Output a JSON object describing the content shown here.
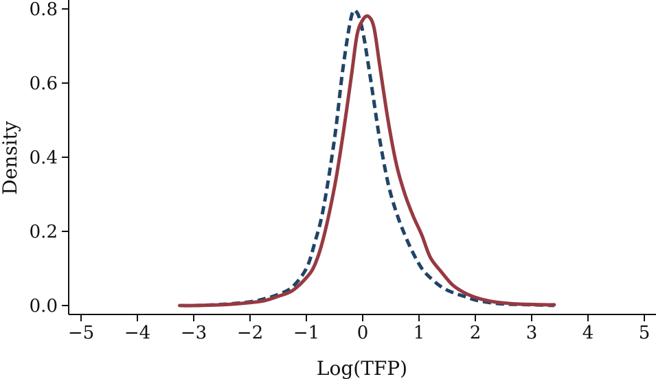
{
  "chart_data": {
    "type": "line",
    "title": "",
    "xlabel": "Log(TFP)",
    "ylabel": "Density",
    "xlim": [
      -5,
      5
    ],
    "ylim": [
      0,
      0.8
    ],
    "xticks": [
      -5,
      -4,
      -3,
      -2,
      -1,
      0,
      1,
      2,
      3,
      4,
      5
    ],
    "xtick_labels": [
      "−5",
      "−4",
      "−3",
      "−2",
      "−1",
      "0",
      "1",
      "2",
      "3",
      "4",
      "5"
    ],
    "yticks": [
      0,
      0.2,
      0.4,
      0.6,
      0.8
    ],
    "ytick_labels": [
      "0.0",
      "0.2",
      "0.4",
      "0.6",
      "0.8"
    ],
    "grid": false,
    "legend": "none",
    "series": [
      {
        "color": "#1f4466",
        "line_style": "dashed",
        "x": [
          -3.25,
          -3.0,
          -2.5,
          -2.0,
          -1.75,
          -1.5,
          -1.25,
          -1.0,
          -0.85,
          -0.7,
          -0.5,
          -0.35,
          -0.2,
          -0.1,
          0.0,
          0.1,
          0.2,
          0.3,
          0.45,
          0.6,
          0.75,
          0.9,
          1.05,
          1.2,
          1.4,
          1.6,
          1.8,
          2.0,
          2.25,
          2.5,
          2.75,
          3.0,
          3.25,
          3.4
        ],
        "y": [
          0.0,
          0.0,
          0.003,
          0.01,
          0.018,
          0.03,
          0.05,
          0.1,
          0.17,
          0.26,
          0.45,
          0.64,
          0.78,
          0.79,
          0.74,
          0.65,
          0.55,
          0.45,
          0.33,
          0.25,
          0.19,
          0.14,
          0.1,
          0.075,
          0.05,
          0.035,
          0.025,
          0.015,
          0.008,
          0.004,
          0.003,
          0.002,
          0.001,
          0.0
        ]
      },
      {
        "color": "#963a42",
        "line_style": "solid",
        "x": [
          -3.25,
          -3.0,
          -2.5,
          -2.0,
          -1.75,
          -1.5,
          -1.25,
          -1.0,
          -0.85,
          -0.7,
          -0.5,
          -0.35,
          -0.2,
          -0.1,
          0.0,
          0.1,
          0.2,
          0.3,
          0.45,
          0.6,
          0.75,
          0.9,
          1.05,
          1.2,
          1.4,
          1.6,
          1.8,
          2.0,
          2.25,
          2.5,
          2.75,
          3.0,
          3.25,
          3.4
        ],
        "y": [
          0.0,
          0.0,
          0.002,
          0.008,
          0.013,
          0.025,
          0.04,
          0.075,
          0.11,
          0.18,
          0.32,
          0.46,
          0.62,
          0.73,
          0.77,
          0.78,
          0.75,
          0.65,
          0.5,
          0.38,
          0.3,
          0.24,
          0.19,
          0.13,
          0.09,
          0.055,
          0.035,
          0.022,
          0.012,
          0.007,
          0.004,
          0.003,
          0.002,
          0.002
        ]
      }
    ]
  }
}
